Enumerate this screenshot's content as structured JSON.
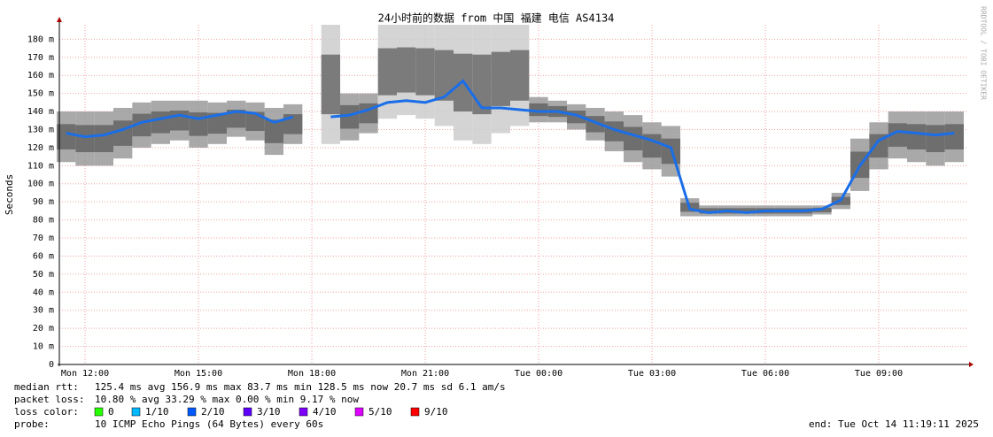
{
  "chart_data": {
    "type": "smokeping",
    "title": "24小时前的数据 from 中国 福建 电信 AS4134",
    "y_label": "Seconds",
    "side_label": "RRDTOOL / TOBI OETIKER",
    "xlim": [
      11.32,
      35.32
    ],
    "ylim": [
      0,
      188
    ],
    "xticks": [
      {
        "value": 12,
        "label": "Mon 12:00"
      },
      {
        "value": 15,
        "label": "Mon 15:00"
      },
      {
        "value": 18,
        "label": "Mon 18:00"
      },
      {
        "value": 21,
        "label": "Mon 21:00"
      },
      {
        "value": 24,
        "label": "Tue 00:00"
      },
      {
        "value": 27,
        "label": "Tue 03:00"
      },
      {
        "value": 30,
        "label": "Tue 06:00"
      },
      {
        "value": 33,
        "label": "Tue 09:00"
      }
    ],
    "yticks": [
      0,
      {
        "value": 10,
        "label": "10 m"
      },
      {
        "value": 20,
        "label": "20 m"
      },
      {
        "value": 30,
        "label": "30 m"
      },
      {
        "value": 40,
        "label": "40 m"
      },
      {
        "value": 50,
        "label": "50 m"
      },
      {
        "value": 60,
        "label": "60 m"
      },
      {
        "value": 70,
        "label": "70 m"
      },
      {
        "value": 80,
        "label": "80 m"
      },
      {
        "value": 90,
        "label": "90 m"
      },
      {
        "value": 100,
        "label": "100 m"
      },
      {
        "value": 110,
        "label": "110 m"
      },
      {
        "value": 120,
        "label": "120 m"
      },
      {
        "value": 130,
        "label": "130 m"
      },
      {
        "value": 140,
        "label": "140 m"
      },
      {
        "value": 150,
        "label": "150 m"
      },
      {
        "value": 160,
        "label": "160 m"
      },
      {
        "value": 170,
        "label": "170 m"
      },
      {
        "value": 180,
        "label": "180 m"
      }
    ],
    "grid": true,
    "x": [
      11.5,
      12,
      12.5,
      13,
      13.5,
      14,
      14.5,
      15,
      15.5,
      16,
      16.5,
      17,
      17.5,
      18,
      18.5,
      19,
      19.5,
      20,
      20.5,
      21,
      21.5,
      22,
      22.5,
      23,
      23.5,
      24,
      24.5,
      25,
      25.5,
      26,
      26.5,
      27,
      27.5,
      28,
      28.5,
      29,
      29.5,
      30,
      30.5,
      31,
      31.5,
      32,
      32.5,
      33,
      33.5,
      34,
      34.5,
      35
    ],
    "series": [
      {
        "name": "median rtt:",
        "color": "#1a6ee8",
        "values": [
          128,
          126,
          127,
          130,
          134,
          136,
          138,
          136,
          138,
          140,
          139,
          134,
          137,
          null,
          137,
          138,
          141,
          145,
          146,
          145,
          148,
          156.9,
          142,
          142,
          141,
          140,
          140,
          138,
          134,
          130,
          127,
          124,
          120,
          86,
          84,
          85,
          84,
          85,
          85,
          85,
          86,
          91,
          110,
          124,
          129,
          128,
          127,
          128
        ]
      }
    ],
    "smoke": {
      "color": "#555555",
      "low": [
        112,
        110,
        110,
        114,
        120,
        122,
        124,
        120,
        122,
        126,
        124,
        116,
        122,
        null,
        122,
        124,
        128,
        136,
        138,
        136,
        132,
        124,
        122,
        128,
        132,
        134,
        134,
        130,
        124,
        118,
        112,
        108,
        104,
        82,
        82,
        82,
        82,
        82,
        82,
        82,
        83,
        86,
        96,
        108,
        114,
        112,
        110,
        112
      ],
      "high": [
        140,
        140,
        140,
        142,
        145,
        146,
        146,
        146,
        145,
        146,
        145,
        142,
        144,
        null,
        188,
        150,
        150,
        188,
        188,
        188,
        188,
        188,
        188,
        188,
        188,
        148,
        146,
        144,
        142,
        140,
        138,
        134,
        132,
        92,
        88,
        88,
        88,
        88,
        88,
        88,
        88,
        95,
        125,
        134,
        140,
        140,
        140,
        140
      ]
    },
    "stats": {
      "rtt": "125.4 ms avg  156.9 ms max  83.7 ms min  128.5 ms now  20.7 ms sd  6.1  am/s",
      "loss_label": "packet loss:",
      "loss": "10.80 % avg  33.29 % max  0.00 % min  9.17 % now",
      "loss_color_label": "loss color:",
      "probe_label": "probe:",
      "probe": "10 ICMP Echo Pings (64 Bytes) every 60s",
      "end": "end: Tue Oct 14 11:19:11 2025"
    },
    "loss_colors": [
      {
        "label": "0",
        "color": "#26ff00"
      },
      {
        "label": "1/10",
        "color": "#00b8ff"
      },
      {
        "label": "2/10",
        "color": "#0059ff"
      },
      {
        "label": "3/10",
        "color": "#5e00ff"
      },
      {
        "label": "4/10",
        "color": "#7e00ff"
      },
      {
        "label": "5/10",
        "color": "#dd00ff"
      },
      {
        "label": "9/10",
        "color": "#ff0000"
      }
    ]
  }
}
